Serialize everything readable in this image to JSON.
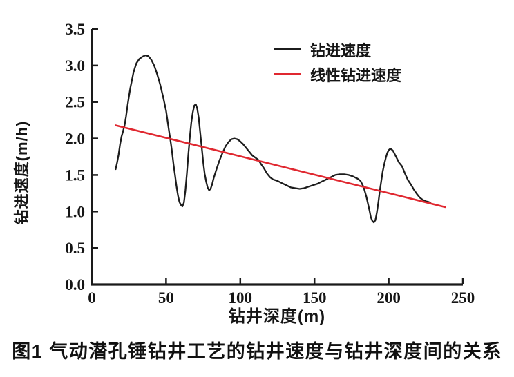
{
  "figure": {
    "caption": "图1  气动潜孔锤钻井工艺的钻井速度与钻井深度间的关系"
  },
  "chart_data": {
    "type": "line",
    "title": "",
    "xlabel": "钻井深度(m)",
    "ylabel": "钻进速度(m/h)",
    "xlim": [
      0,
      250
    ],
    "ylim": [
      0,
      3.5
    ],
    "x_ticks": [
      0,
      50,
      100,
      150,
      200,
      250
    ],
    "y_ticks": [
      0,
      0.5,
      1,
      1.5,
      2,
      2.5,
      3,
      3.5
    ],
    "grid": false,
    "legend_position": "inside-top-right",
    "axis_color": "#1a1a1a",
    "series": [
      {
        "name": "钻进速度",
        "color": "#1c1c1c",
        "width": 2.3,
        "points": [
          [
            16,
            1.58
          ],
          [
            17,
            1.67
          ],
          [
            18,
            1.78
          ],
          [
            19,
            1.92
          ],
          [
            20,
            2.03
          ],
          [
            21,
            2.1
          ],
          [
            22,
            2.18
          ],
          [
            23,
            2.3
          ],
          [
            24,
            2.45
          ],
          [
            25,
            2.58
          ],
          [
            26,
            2.7
          ],
          [
            27,
            2.8
          ],
          [
            28,
            2.9
          ],
          [
            29,
            2.97
          ],
          [
            30,
            3.03
          ],
          [
            32,
            3.09
          ],
          [
            34,
            3.12
          ],
          [
            36,
            3.14
          ],
          [
            38,
            3.13
          ],
          [
            40,
            3.08
          ],
          [
            42,
            3.0
          ],
          [
            44,
            2.88
          ],
          [
            46,
            2.74
          ],
          [
            48,
            2.57
          ],
          [
            50,
            2.38
          ],
          [
            52,
            2.1
          ],
          [
            53,
            1.97
          ],
          [
            54,
            1.82
          ],
          [
            55,
            1.65
          ],
          [
            56,
            1.5
          ],
          [
            57,
            1.35
          ],
          [
            58,
            1.22
          ],
          [
            59,
            1.13
          ],
          [
            60,
            1.09
          ],
          [
            61,
            1.07
          ],
          [
            62,
            1.12
          ],
          [
            63,
            1.28
          ],
          [
            64,
            1.52
          ],
          [
            65,
            1.78
          ],
          [
            66,
            2.02
          ],
          [
            67,
            2.22
          ],
          [
            68,
            2.36
          ],
          [
            69,
            2.45
          ],
          [
            70,
            2.47
          ],
          [
            71,
            2.41
          ],
          [
            72,
            2.28
          ],
          [
            73,
            2.08
          ],
          [
            74,
            1.88
          ],
          [
            75,
            1.68
          ],
          [
            76,
            1.52
          ],
          [
            77,
            1.41
          ],
          [
            78,
            1.33
          ],
          [
            79,
            1.29
          ],
          [
            80,
            1.31
          ],
          [
            81,
            1.37
          ],
          [
            82,
            1.45
          ],
          [
            84,
            1.58
          ],
          [
            86,
            1.7
          ],
          [
            88,
            1.8
          ],
          [
            90,
            1.89
          ],
          [
            92,
            1.95
          ],
          [
            94,
            1.99
          ],
          [
            96,
            2.0
          ],
          [
            98,
            1.99
          ],
          [
            100,
            1.96
          ],
          [
            102,
            1.92
          ],
          [
            104,
            1.87
          ],
          [
            106,
            1.82
          ],
          [
            108,
            1.77
          ],
          [
            110,
            1.74
          ],
          [
            112,
            1.71
          ],
          [
            114,
            1.65
          ],
          [
            116,
            1.59
          ],
          [
            118,
            1.52
          ],
          [
            120,
            1.47
          ],
          [
            122,
            1.44
          ],
          [
            125,
            1.42
          ],
          [
            128,
            1.39
          ],
          [
            131,
            1.36
          ],
          [
            134,
            1.33
          ],
          [
            137,
            1.32
          ],
          [
            140,
            1.31
          ],
          [
            143,
            1.32
          ],
          [
            146,
            1.34
          ],
          [
            149,
            1.36
          ],
          [
            152,
            1.38
          ],
          [
            155,
            1.41
          ],
          [
            158,
            1.44
          ],
          [
            161,
            1.47
          ],
          [
            164,
            1.5
          ],
          [
            167,
            1.51
          ],
          [
            170,
            1.51
          ],
          [
            173,
            1.5
          ],
          [
            176,
            1.48
          ],
          [
            179,
            1.45
          ],
          [
            181,
            1.42
          ],
          [
            183,
            1.34
          ],
          [
            185,
            1.2
          ],
          [
            187,
            1.02
          ],
          [
            188,
            0.92
          ],
          [
            189,
            0.87
          ],
          [
            190,
            0.85
          ],
          [
            191,
            0.88
          ],
          [
            192,
            0.98
          ],
          [
            193,
            1.12
          ],
          [
            194,
            1.28
          ],
          [
            195,
            1.42
          ],
          [
            196,
            1.55
          ],
          [
            197,
            1.65
          ],
          [
            198,
            1.73
          ],
          [
            199,
            1.8
          ],
          [
            200,
            1.84
          ],
          [
            201,
            1.86
          ],
          [
            202,
            1.85
          ],
          [
            203,
            1.83
          ],
          [
            205,
            1.75
          ],
          [
            207,
            1.67
          ],
          [
            209,
            1.62
          ],
          [
            211,
            1.52
          ],
          [
            213,
            1.43
          ],
          [
            215,
            1.37
          ],
          [
            217,
            1.3
          ],
          [
            219,
            1.24
          ],
          [
            221,
            1.19
          ],
          [
            223,
            1.16
          ],
          [
            225,
            1.14
          ],
          [
            227,
            1.13
          ],
          [
            228,
            1.12
          ]
        ]
      },
      {
        "name": "线性钻进速度",
        "color": "#e02830",
        "width": 2.6,
        "points": [
          [
            16,
            2.18
          ],
          [
            238,
            1.06
          ]
        ]
      }
    ]
  }
}
